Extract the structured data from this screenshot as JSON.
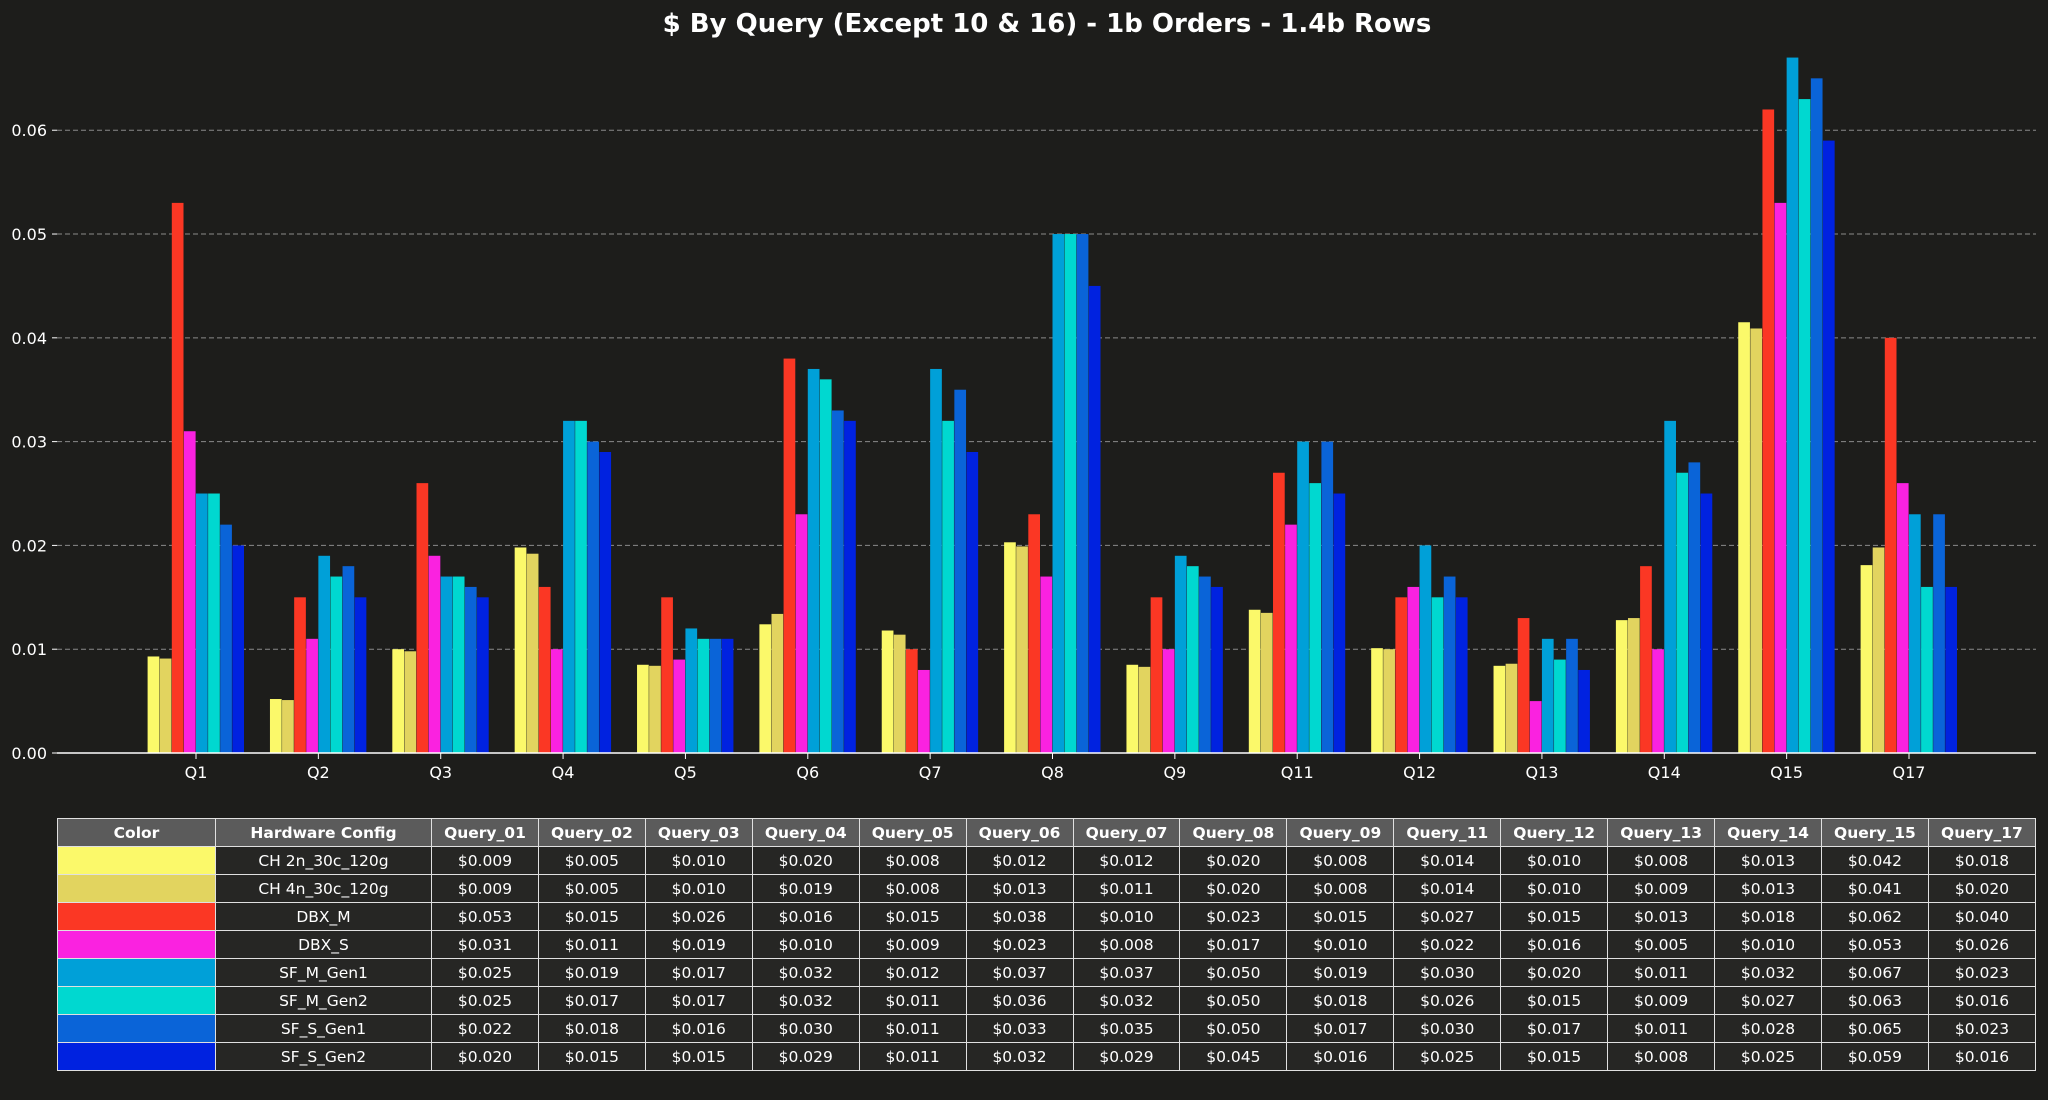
{
  "chart_data": {
    "type": "bar",
    "title": "$ By Query (Except 10 & 16) - 1b Orders - 1.4b Rows",
    "xlabel": "",
    "ylabel": "",
    "ylim": [
      0,
      0.0685
    ],
    "yticks": [
      "0.00",
      "0.01",
      "0.02",
      "0.03",
      "0.04",
      "0.05",
      "0.06"
    ],
    "grid": "horizontal dashed",
    "categories": [
      "Q1",
      "Q2",
      "Q3",
      "Q4",
      "Q5",
      "Q6",
      "Q7",
      "Q8",
      "Q9",
      "Q11",
      "Q12",
      "Q13",
      "Q14",
      "Q15",
      "Q17"
    ],
    "series": [
      {
        "name": "CH 2n_30c_120g",
        "color": "#fbf96a",
        "values": [
          0.0093,
          0.0052,
          0.01,
          0.0198,
          0.0085,
          0.0124,
          0.0118,
          0.0203,
          0.0085,
          0.0138,
          0.0101,
          0.0084,
          0.0128,
          0.0415,
          0.0181
        ]
      },
      {
        "name": "CH 4n_30c_120g",
        "color": "#e2d45f",
        "values": [
          0.0091,
          0.0051,
          0.0098,
          0.0192,
          0.0084,
          0.0134,
          0.0114,
          0.0199,
          0.0083,
          0.0135,
          0.01,
          0.0086,
          0.013,
          0.0409,
          0.0198
        ]
      },
      {
        "name": "DBX_M",
        "color": "#fb3724",
        "values": [
          0.053,
          0.015,
          0.026,
          0.016,
          0.015,
          0.038,
          0.01,
          0.023,
          0.015,
          0.027,
          0.015,
          0.013,
          0.018,
          0.062,
          0.04
        ]
      },
      {
        "name": "DBX_S",
        "color": "#fa22e0",
        "values": [
          0.031,
          0.011,
          0.019,
          0.01,
          0.009,
          0.023,
          0.008,
          0.017,
          0.01,
          0.022,
          0.016,
          0.005,
          0.01,
          0.053,
          0.026
        ]
      },
      {
        "name": "SF_M_Gen1",
        "color": "#00a0d8",
        "values": [
          0.025,
          0.019,
          0.017,
          0.032,
          0.012,
          0.037,
          0.037,
          0.05,
          0.019,
          0.03,
          0.02,
          0.011,
          0.032,
          0.067,
          0.023
        ]
      },
      {
        "name": "SF_M_Gen2",
        "color": "#00d8d0",
        "values": [
          0.025,
          0.017,
          0.017,
          0.032,
          0.011,
          0.036,
          0.032,
          0.05,
          0.018,
          0.026,
          0.015,
          0.009,
          0.027,
          0.063,
          0.016
        ]
      },
      {
        "name": "SF_S_Gen1",
        "color": "#0a64d8",
        "values": [
          0.022,
          0.018,
          0.016,
          0.03,
          0.011,
          0.033,
          0.035,
          0.05,
          0.017,
          0.03,
          0.017,
          0.011,
          0.028,
          0.065,
          0.023
        ]
      },
      {
        "name": "SF_S_Gen2",
        "color": "#0022e0",
        "values": [
          0.02,
          0.015,
          0.015,
          0.029,
          0.011,
          0.032,
          0.029,
          0.045,
          0.016,
          0.025,
          0.015,
          0.008,
          0.025,
          0.059,
          0.016
        ]
      }
    ]
  },
  "table": {
    "col_color": "Color",
    "col_config": "Hardware Config",
    "headers": [
      "Query_01",
      "Query_02",
      "Query_03",
      "Query_04",
      "Query_05",
      "Query_06",
      "Query_07",
      "Query_08",
      "Query_09",
      "Query_11",
      "Query_12",
      "Query_13",
      "Query_14",
      "Query_15",
      "Query_17"
    ],
    "rows": [
      {
        "config": "CH 2n_30c_120g",
        "color": "#fbf96a",
        "cells": [
          "$0.009",
          "$0.005",
          "$0.010",
          "$0.020",
          "$0.008",
          "$0.012",
          "$0.012",
          "$0.020",
          "$0.008",
          "$0.014",
          "$0.010",
          "$0.008",
          "$0.013",
          "$0.042",
          "$0.018"
        ]
      },
      {
        "config": "CH 4n_30c_120g",
        "color": "#e2d45f",
        "cells": [
          "$0.009",
          "$0.005",
          "$0.010",
          "$0.019",
          "$0.008",
          "$0.013",
          "$0.011",
          "$0.020",
          "$0.008",
          "$0.014",
          "$0.010",
          "$0.009",
          "$0.013",
          "$0.041",
          "$0.020"
        ]
      },
      {
        "config": "DBX_M",
        "color": "#fb3724",
        "cells": [
          "$0.053",
          "$0.015",
          "$0.026",
          "$0.016",
          "$0.015",
          "$0.038",
          "$0.010",
          "$0.023",
          "$0.015",
          "$0.027",
          "$0.015",
          "$0.013",
          "$0.018",
          "$0.062",
          "$0.040"
        ]
      },
      {
        "config": "DBX_S",
        "color": "#fa22e0",
        "cells": [
          "$0.031",
          "$0.011",
          "$0.019",
          "$0.010",
          "$0.009",
          "$0.023",
          "$0.008",
          "$0.017",
          "$0.010",
          "$0.022",
          "$0.016",
          "$0.005",
          "$0.010",
          "$0.053",
          "$0.026"
        ]
      },
      {
        "config": "SF_M_Gen1",
        "color": "#00a0d8",
        "cells": [
          "$0.025",
          "$0.019",
          "$0.017",
          "$0.032",
          "$0.012",
          "$0.037",
          "$0.037",
          "$0.050",
          "$0.019",
          "$0.030",
          "$0.020",
          "$0.011",
          "$0.032",
          "$0.067",
          "$0.023"
        ]
      },
      {
        "config": "SF_M_Gen2",
        "color": "#00d8d0",
        "cells": [
          "$0.025",
          "$0.017",
          "$0.017",
          "$0.032",
          "$0.011",
          "$0.036",
          "$0.032",
          "$0.050",
          "$0.018",
          "$0.026",
          "$0.015",
          "$0.009",
          "$0.027",
          "$0.063",
          "$0.016"
        ]
      },
      {
        "config": "SF_S_Gen1",
        "color": "#0a64d8",
        "cells": [
          "$0.022",
          "$0.018",
          "$0.016",
          "$0.030",
          "$0.011",
          "$0.033",
          "$0.035",
          "$0.050",
          "$0.017",
          "$0.030",
          "$0.017",
          "$0.011",
          "$0.028",
          "$0.065",
          "$0.023"
        ]
      },
      {
        "config": "SF_S_Gen2",
        "color": "#0022e0",
        "cells": [
          "$0.020",
          "$0.015",
          "$0.015",
          "$0.029",
          "$0.011",
          "$0.032",
          "$0.029",
          "$0.045",
          "$0.016",
          "$0.025",
          "$0.015",
          "$0.008",
          "$0.025",
          "$0.059",
          "$0.016"
        ]
      }
    ]
  }
}
